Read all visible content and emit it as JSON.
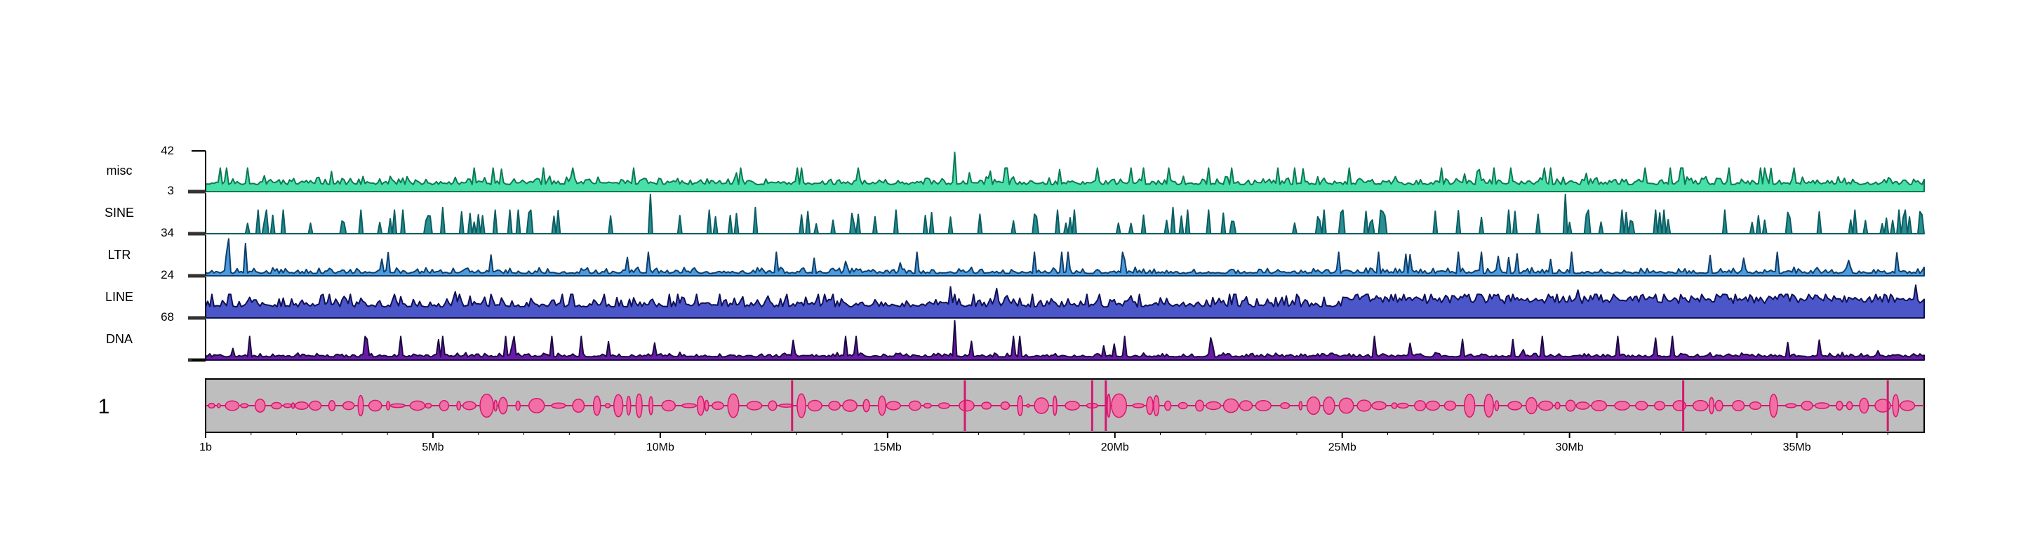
{
  "chart_data": {
    "type": "area",
    "chromosome_label": "1",
    "x_unit": "bp",
    "xlim": [
      1,
      37800000
    ],
    "x_ticks": [
      {
        "value": 1,
        "label": "1b"
      },
      {
        "value": 5000000,
        "label": "5Mb"
      },
      {
        "value": 10000000,
        "label": "10Mb"
      },
      {
        "value": 15000000,
        "label": "15Mb"
      },
      {
        "value": 20000000,
        "label": "20Mb"
      },
      {
        "value": 25000000,
        "label": "25Mb"
      },
      {
        "value": 30000000,
        "label": "30Mb"
      },
      {
        "value": 35000000,
        "label": "35Mb"
      }
    ],
    "tracks": [
      {
        "name": "misc",
        "scale_label": "42",
        "max": 42,
        "color": "#49e0a8",
        "stroke": "#0b7a55",
        "seed": 11,
        "base": 0.18,
        "noise": 0.22,
        "spike_p": 0.05,
        "peaks": [
          {
            "x": 16500000,
            "y": 42
          },
          {
            "x": 11700000,
            "y": 20
          },
          {
            "x": 27700000,
            "y": 19
          },
          {
            "x": 1300000,
            "y": 17
          },
          {
            "x": 33000000,
            "y": 16
          }
        ]
      },
      {
        "name": "SINE",
        "scale_label": "3",
        "max": 3,
        "color": "#2a8f93",
        "stroke": "#0b5e62",
        "seed": 23,
        "base": 0.0,
        "noise": 0.0,
        "spike_p": 0.14,
        "peaks": [
          {
            "x": 9800000,
            "y": 3
          },
          {
            "x": 29900000,
            "y": 3
          },
          {
            "x": 5200000,
            "y": 2
          },
          {
            "x": 12100000,
            "y": 2
          },
          {
            "x": 21300000,
            "y": 2
          }
        ]
      },
      {
        "name": "LTR",
        "scale_label": "34",
        "max": 34,
        "color": "#4a9be0",
        "stroke": "#0f3f6a",
        "seed": 37,
        "base": 0.06,
        "noise": 0.18,
        "spike_p": 0.05,
        "peaks": [
          {
            "x": 500000,
            "y": 32
          },
          {
            "x": 900000,
            "y": 28
          },
          {
            "x": 9300000,
            "y": 16
          },
          {
            "x": 20200000,
            "y": 14
          },
          {
            "x": 37200000,
            "y": 20
          }
        ]
      },
      {
        "name": "LINE",
        "scale_label": "24",
        "max": 24,
        "color": "#4b56c9",
        "stroke": "#101055",
        "seed": 53,
        "base": 0.28,
        "noise": 0.32,
        "spike_p": 0.06,
        "peaks": [
          {
            "x": 16400000,
            "y": 19
          },
          {
            "x": 17400000,
            "y": 18
          },
          {
            "x": 5500000,
            "y": 16
          },
          {
            "x": 30200000,
            "y": 17
          },
          {
            "x": 37600000,
            "y": 20
          }
        ]
      },
      {
        "name": "DNA",
        "scale_label": "68",
        "max": 68,
        "color": "#6a1aa8",
        "stroke": "#1a0a40",
        "seed": 71,
        "base": 0.08,
        "noise": 0.12,
        "spike_p": 0.03,
        "peaks": [
          {
            "x": 16500000,
            "y": 68
          },
          {
            "x": 600000,
            "y": 20
          },
          {
            "x": 29000000,
            "y": 18
          },
          {
            "x": 36800000,
            "y": 16
          }
        ]
      }
    ],
    "ideogram": {
      "fill": "#bebebe",
      "feature_color": "#d4186e",
      "peak_positions": [
        19500000,
        19800000,
        32500000,
        37000000,
        12900000,
        16700000
      ]
    }
  }
}
